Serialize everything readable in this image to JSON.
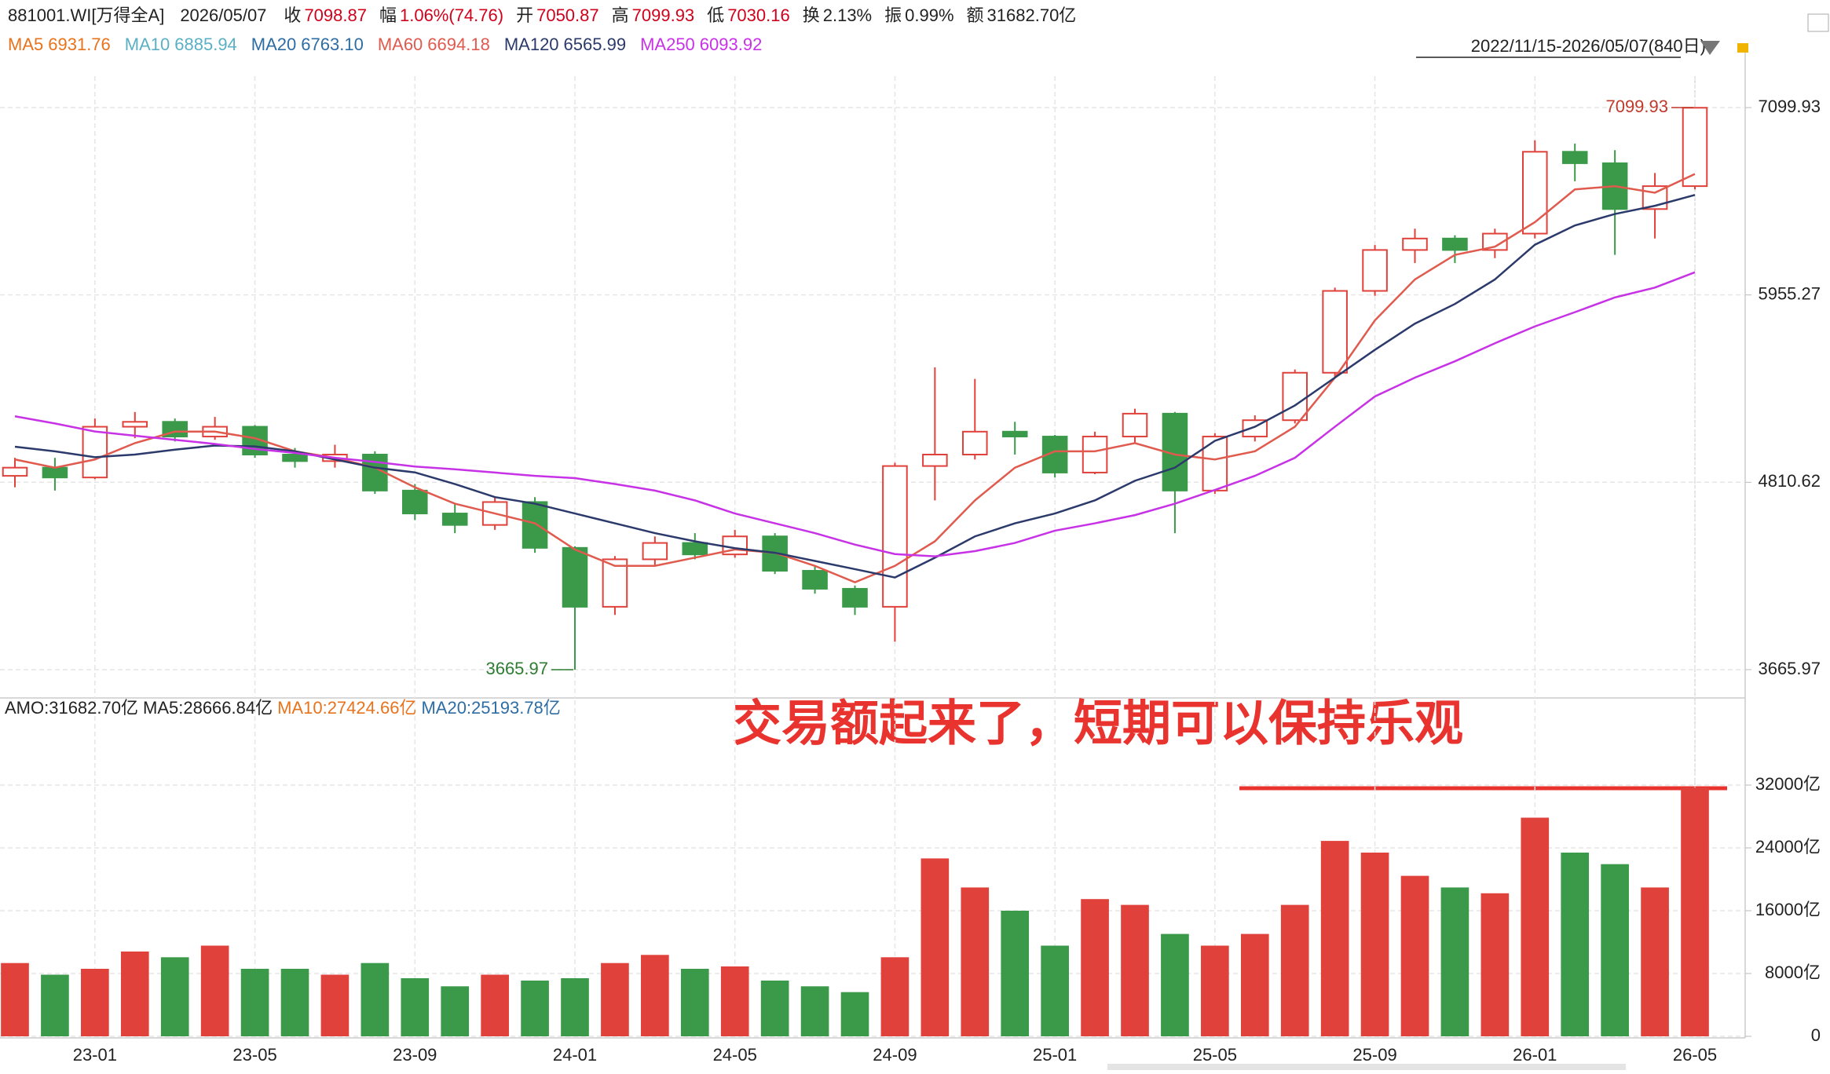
{
  "header": {
    "code": "881001.WI[万得全A]",
    "date": "2026/05/07",
    "fields": [
      {
        "label": "收",
        "value": "7098.87",
        "color": "#d0021b"
      },
      {
        "label": "幅",
        "value": "1.06%(74.76)",
        "color": "#d0021b"
      },
      {
        "label": "开",
        "value": "7050.87",
        "color": "#d0021b"
      },
      {
        "label": "高",
        "value": "7099.93",
        "color": "#d0021b"
      },
      {
        "label": "低",
        "value": "7030.16",
        "color": "#d0021b"
      },
      {
        "label": "换",
        "value": "2.13%",
        "color": "#222222"
      },
      {
        "label": "振",
        "value": "0.99%",
        "color": "#222222"
      },
      {
        "label": "额",
        "value": "31682.70亿",
        "color": "#222222"
      }
    ],
    "range": "2022/11/15-2026/05/07(840日)"
  },
  "annotation": "交易额起来了，短期可以保持乐观",
  "chart_data": [
    {
      "type": "candlestick",
      "up_color": "#e0413a",
      "down_color": "#3b9a4a",
      "xlim": [
        "2022-11",
        "2026-05"
      ],
      "x": [
        "2022-11",
        "2022-12",
        "2023-01",
        "2023-02",
        "2023-03",
        "2023-04",
        "2023-05",
        "2023-06",
        "2023-07",
        "2023-08",
        "2023-09",
        "2023-10",
        "2023-11",
        "2023-12",
        "2024-01",
        "2024-02",
        "2024-03",
        "2024-04",
        "2024-05",
        "2024-06",
        "2024-07",
        "2024-08",
        "2024-09",
        "2024-10",
        "2024-11",
        "2024-12",
        "2025-01",
        "2025-02",
        "2025-03",
        "2025-04",
        "2025-05",
        "2025-06",
        "2025-07",
        "2025-08",
        "2025-09",
        "2025-10",
        "2025-11",
        "2025-12",
        "2026-01",
        "2026-02",
        "2026-03",
        "2026-04",
        "2026-05"
      ],
      "open": [
        4850,
        4900,
        4840,
        5150,
        5180,
        5090,
        5150,
        4980,
        4940,
        4980,
        4760,
        4620,
        4550,
        4690,
        4410,
        4050,
        4340,
        4440,
        4370,
        4480,
        4270,
        4160,
        4050,
        4910,
        4980,
        5120,
        5090,
        4870,
        5090,
        5230,
        4760,
        5090,
        5190,
        5480,
        5980,
        6230,
        6300,
        6230,
        6330,
        6830,
        6760,
        6480,
        6620
      ],
      "high": [
        4960,
        4960,
        5200,
        5240,
        5200,
        5210,
        5160,
        5020,
        5040,
        5000,
        4800,
        4680,
        4720,
        4720,
        4420,
        4360,
        4480,
        4500,
        4520,
        4500,
        4300,
        4180,
        4930,
        5513,
        5442,
        5180,
        5100,
        5120,
        5260,
        5240,
        5110,
        5220,
        5500,
        6000,
        6260,
        6360,
        6320,
        6360,
        6900,
        6880,
        6840,
        6700,
        7099.93
      ],
      "low": [
        4780,
        4760,
        4830,
        5080,
        5060,
        5070,
        4960,
        4900,
        4900,
        4740,
        4580,
        4500,
        4520,
        4380,
        3665.97,
        4000,
        4300,
        4340,
        4350,
        4250,
        4130,
        4000,
        3837,
        4700,
        4950,
        4980,
        4840,
        4860,
        5050,
        4500,
        4740,
        5060,
        5170,
        5450,
        5950,
        6150,
        6150,
        6180,
        6300,
        6650,
        6200,
        6300,
        6600
      ],
      "close": [
        4900,
        4840,
        5150,
        5180,
        5090,
        5150,
        4980,
        4940,
        4980,
        4760,
        4620,
        4550,
        4690,
        4410,
        4050,
        4340,
        4440,
        4370,
        4480,
        4270,
        4160,
        4050,
        4910,
        4980,
        5120,
        5090,
        4870,
        5090,
        5230,
        4760,
        5090,
        5190,
        5480,
        5980,
        6230,
        6300,
        6230,
        6330,
        6830,
        6760,
        6480,
        6620,
        7098.87
      ],
      "series": [
        {
          "name": "MA5",
          "label": "6931.76",
          "color": "#e8731d"
        },
        {
          "name": "MA10",
          "label": "6885.94",
          "color": "#5bb0c5"
        },
        {
          "name": "MA20",
          "label": "6763.10",
          "color": "#2e6da4"
        },
        {
          "name": "MA60",
          "label": "6694.18",
          "color": "#e05a4e",
          "values": [
            4950,
            4900,
            4950,
            5050,
            5120,
            5120,
            5080,
            5000,
            4960,
            4900,
            4780,
            4680,
            4620,
            4560,
            4400,
            4300,
            4300,
            4350,
            4400,
            4380,
            4300,
            4200,
            4300,
            4450,
            4700,
            4900,
            5000,
            5000,
            5050,
            4980,
            4950,
            5000,
            5150,
            5450,
            5800,
            6050,
            6200,
            6250,
            6400,
            6600,
            6620,
            6580,
            6694.18
          ]
        },
        {
          "name": "MA120",
          "label": "6565.99",
          "color": "#2b3a6b",
          "values": [
            5028,
            5000,
            4964,
            4980,
            5010,
            5035,
            5030,
            5000,
            4950,
            4900,
            4871,
            4800,
            4720,
            4680,
            4620,
            4560,
            4500,
            4450,
            4408,
            4380,
            4330,
            4280,
            4229,
            4350,
            4480,
            4560,
            4620,
            4700,
            4820,
            4900,
            5064,
            5150,
            5280,
            5450,
            5620,
            5780,
            5900,
            6050,
            6262,
            6380,
            6450,
            6500,
            6565.99
          ]
        },
        {
          "name": "MA250",
          "label": "6093.92",
          "color": "#c832e6",
          "values": [
            5214,
            5170,
            5121,
            5095,
            5070,
            5045,
            5014,
            4990,
            4960,
            4935,
            4907,
            4890,
            4870,
            4850,
            4836,
            4800,
            4760,
            4700,
            4620,
            4560,
            4500,
            4430,
            4372,
            4358,
            4390,
            4440,
            4515,
            4560,
            4610,
            4680,
            4764,
            4850,
            4960,
            5150,
            5335,
            5450,
            5550,
            5660,
            5763,
            5850,
            5940,
            6000,
            6093.92
          ]
        }
      ],
      "ylim": [
        3493,
        7292
      ],
      "yticks": [
        7099.93,
        5955.27,
        4810.62,
        3665.97
      ],
      "grid": true
    },
    {
      "type": "bar",
      "legend": [
        {
          "text": "AMO:31682.70亿",
          "color": "#222222"
        },
        {
          "text": "MA5:28666.84亿",
          "color": "#222222"
        },
        {
          "text": "MA10:27424.66亿",
          "color": "#e8731d"
        },
        {
          "text": "MA20:25193.78亿",
          "color": "#2e6da4"
        }
      ],
      "values": [
        9333,
        7850,
        8600,
        10800,
        10070,
        11550,
        8600,
        8600,
        7850,
        9333,
        7400,
        6370,
        7850,
        7100,
        7400,
        9333,
        10370,
        8600,
        8900,
        7100,
        6370,
        5630,
        10070,
        22660,
        18960,
        16000,
        11550,
        17480,
        16740,
        13040,
        11550,
        13040,
        16740,
        24890,
        23400,
        20440,
        18960,
        18220,
        27850,
        23400,
        21930,
        18960,
        31682.7
      ],
      "ylim": [
        0,
        42800
      ],
      "yticks": [
        {
          "value": 32000,
          "label": "32000亿"
        },
        {
          "value": 24000,
          "label": "24000亿"
        },
        {
          "value": 16000,
          "label": "16000亿"
        },
        {
          "value": 8000,
          "label": "8000亿"
        },
        0
      ],
      "xticks": [
        {
          "value": "2023-01",
          "label": "23-01"
        },
        {
          "value": "2023-05",
          "label": "23-05"
        },
        {
          "value": "2023-09",
          "label": "23-09"
        },
        {
          "value": "2024-01",
          "label": "24-01"
        },
        {
          "value": "2024-05",
          "label": "24-05"
        },
        {
          "value": "2024-09",
          "label": "24-09"
        },
        {
          "value": "2025-01",
          "label": "25-01"
        },
        {
          "value": "2025-05",
          "label": "25-05"
        },
        {
          "value": "2025-09",
          "label": "25-09"
        },
        {
          "value": "2026-01",
          "label": "26-01"
        },
        {
          "value": "2026-05",
          "label": "26-05"
        }
      ],
      "grid": true
    }
  ]
}
